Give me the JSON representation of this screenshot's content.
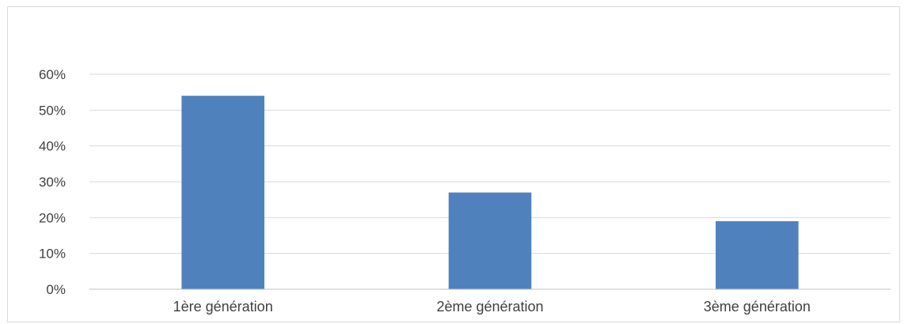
{
  "chart_data": {
    "type": "bar",
    "categories": [
      "1ère génération",
      "2ème génération",
      "3ème génération"
    ],
    "values": [
      54,
      27,
      19
    ],
    "value_unit": "%",
    "ylim": [
      0,
      60
    ],
    "yticks": [
      "0%",
      "10%",
      "20%",
      "30%",
      "40%",
      "50%",
      "60%"
    ],
    "title": "",
    "xlabel": "",
    "ylabel": "",
    "grid": true,
    "legend": "none",
    "colors": {
      "bar": "#4f81bd",
      "grid": "#d9d9d9",
      "axis": "#bfbfbf",
      "text": "#404040"
    }
  }
}
